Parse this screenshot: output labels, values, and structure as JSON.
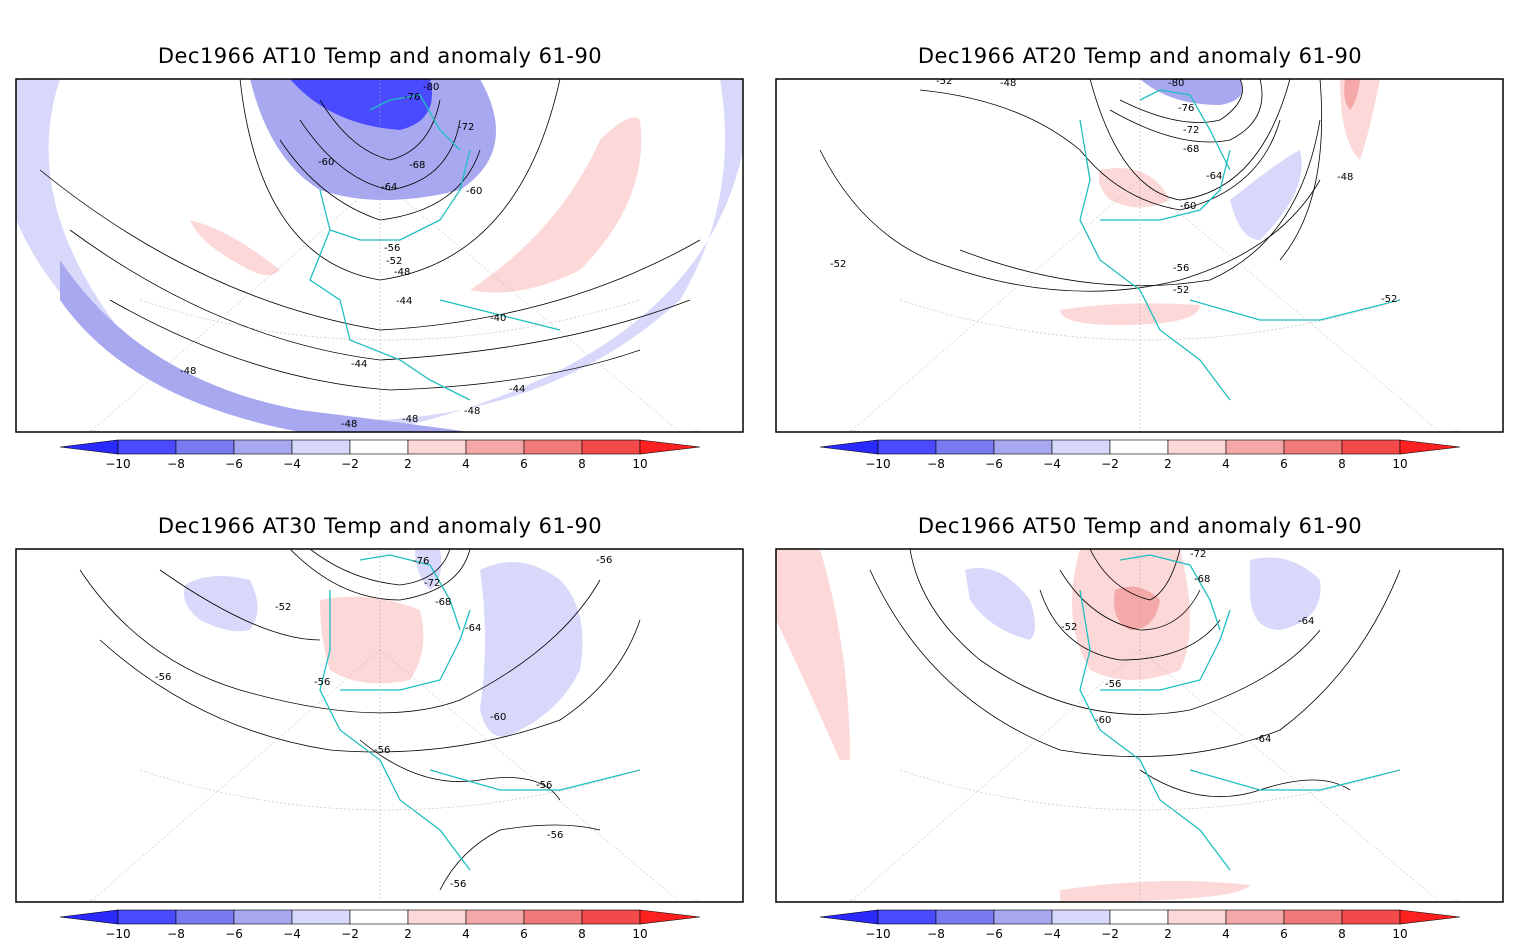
{
  "colorbar": {
    "ticks": [
      "−10",
      "−8",
      "−6",
      "−4",
      "−2",
      "2",
      "4",
      "6",
      "8",
      "10"
    ],
    "colors": [
      "#2a2aff",
      "#4a4aff",
      "#7a7af0",
      "#a8a8f0",
      "#d8d8fa",
      "#ffffff",
      "#fcd8d8",
      "#f4a8a8",
      "#f07a7a",
      "#f24a4a",
      "#ff2020"
    ]
  },
  "map_colors": {
    "coast": "#1fbfbf",
    "contour": "#000000",
    "grid": "#aaaaaa"
  },
  "panels": [
    {
      "title": "Dec1966 AT10 Temp and anomaly 61-90",
      "contour_labels": [
        "-80",
        "-76",
        "-72",
        "-68",
        "-64",
        "-60",
        "-60",
        "-56",
        "-52",
        "-48",
        "-44",
        "-40",
        "-44",
        "-48",
        "-48",
        "-48",
        "-48",
        "-44"
      ]
    },
    {
      "title": "Dec1966 AT20 Temp and anomaly 61-90",
      "contour_labels": [
        "-52",
        "-48",
        "-80",
        "-76",
        "-72",
        "-68",
        "-64",
        "-60",
        "-56",
        "-52",
        "-52",
        "-52",
        "-48"
      ]
    },
    {
      "title": "Dec1966 AT30 Temp and anomaly 61-90",
      "contour_labels": [
        "-76",
        "-72",
        "-68",
        "-64",
        "-56",
        "-52",
        "-56",
        "-56",
        "-60",
        "-56",
        "-56",
        "-56",
        "-56"
      ]
    },
    {
      "title": "Dec1966 AT50 Temp and anomaly 61-90",
      "contour_labels": [
        "-72",
        "-68",
        "-64",
        "-52",
        "-56",
        "-60",
        "-64"
      ]
    }
  ]
}
